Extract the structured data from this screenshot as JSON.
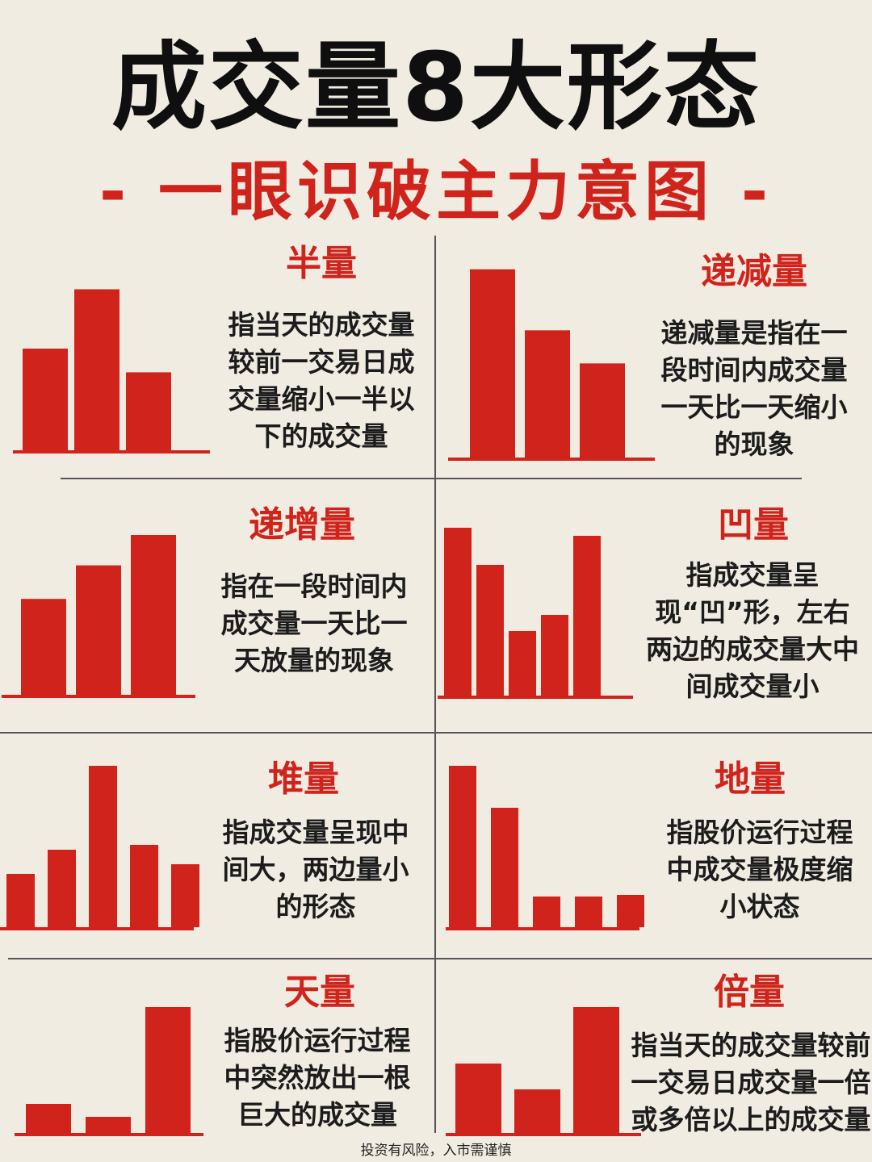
{
  "page": {
    "title": "成交量8大形态",
    "subtitle": "- 一眼识破主力意图 -",
    "footer": "投资有风险，入市需谨慎"
  },
  "colors": {
    "bar": "#d0231b",
    "title_red": "#d0231b",
    "background": "#f1ece2",
    "text": "#1c1c1c"
  },
  "chart_data": [
    {
      "type": "bar",
      "title": "半量",
      "description": "指当天的成交量较前一交易日成交量缩小一半以下的成交量",
      "values": [
        60,
        95,
        46
      ]
    },
    {
      "type": "bar",
      "title": "递减量",
      "description": "递减量是指在一段时间内成交量一天比一天缩小的现象",
      "values": [
        108,
        73,
        54
      ]
    },
    {
      "type": "bar",
      "title": "递增量",
      "description": "指在一段时间内成交量一天比一天放量的现象",
      "values": [
        60,
        81,
        100
      ]
    },
    {
      "type": "bar",
      "title": "凹量",
      "description": "指成交量呈现“凹”形，左右两边的成交量大中间成交量小",
      "values": [
        104,
        81,
        40,
        50,
        99
      ]
    },
    {
      "type": "bar",
      "title": "堆量",
      "description": "指成交量呈现中间大，两边量小的形态",
      "values": [
        33,
        48,
        100,
        51,
        39
      ]
    },
    {
      "type": "bar",
      "title": "地量",
      "description": "指股价运行过程中成交量极度缩小状态",
      "values": [
        100,
        74,
        19,
        19,
        20
      ]
    },
    {
      "type": "bar",
      "title": "天量",
      "description": "指股价运行过程中突然放出一根巨大的成交量",
      "values": [
        18,
        10,
        78
      ]
    },
    {
      "type": "bar",
      "title": "倍量",
      "description": "指当天的成交量较前一交易日成交量一倍或多倍以上的成交量",
      "values": [
        43,
        27,
        78
      ]
    }
  ]
}
